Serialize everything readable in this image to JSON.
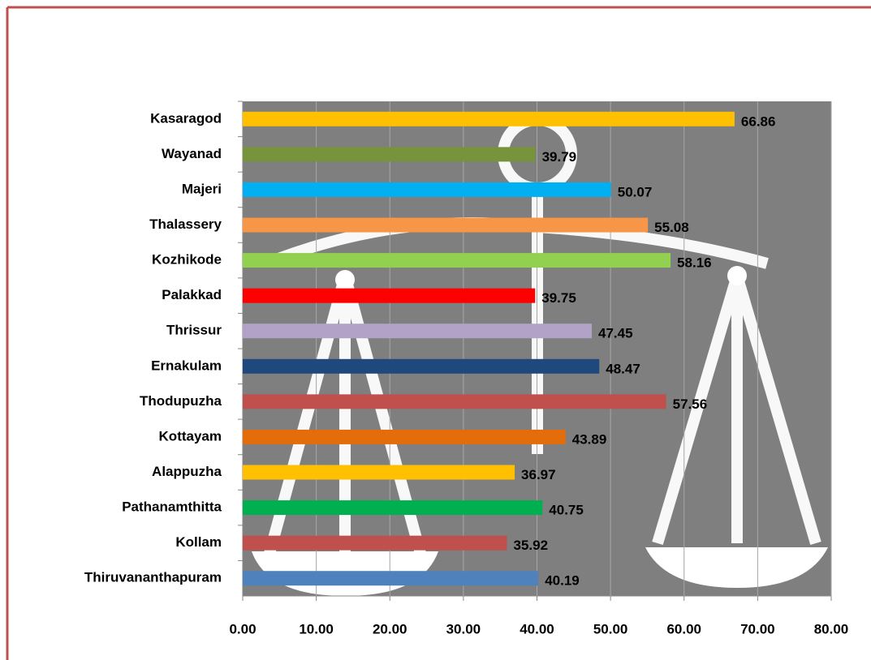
{
  "chart_data": {
    "type": "bar",
    "orientation": "horizontal",
    "categories": [
      "Kasaragod",
      "Wayanad",
      "Majeri",
      "Thalassery",
      "Kozhikode",
      "Palakkad",
      "Thrissur",
      "Ernakulam",
      "Thodupuzha",
      "Kottayam",
      "Alappuzha",
      "Pathanamthitta",
      "Kollam",
      "Thiruvananthapuram"
    ],
    "values": [
      66.86,
      39.79,
      50.07,
      55.08,
      58.16,
      39.75,
      47.45,
      48.47,
      57.56,
      43.89,
      36.97,
      40.75,
      35.92,
      40.19
    ],
    "colors": [
      "#ffc000",
      "#77933c",
      "#00b0f0",
      "#f79646",
      "#92d050",
      "#ff0000",
      "#b3a2c7",
      "#1f497d",
      "#c0504d",
      "#e46c0a",
      "#ffc000",
      "#00b050",
      "#c0504d",
      "#4f81bd"
    ],
    "xlim": [
      0,
      80
    ],
    "xticks": [
      {
        "value": 0,
        "label": "0.00"
      },
      {
        "value": 10,
        "label": "10.00"
      },
      {
        "value": 20,
        "label": "20.00"
      },
      {
        "value": 30,
        "label": "30.00"
      },
      {
        "value": 40,
        "label": "40.00"
      },
      {
        "value": 50,
        "label": "50.00"
      },
      {
        "value": 60,
        "label": "60.00"
      },
      {
        "value": 70,
        "label": "70.00"
      },
      {
        "value": 80,
        "label": "80.00"
      }
    ],
    "grid": true
  }
}
